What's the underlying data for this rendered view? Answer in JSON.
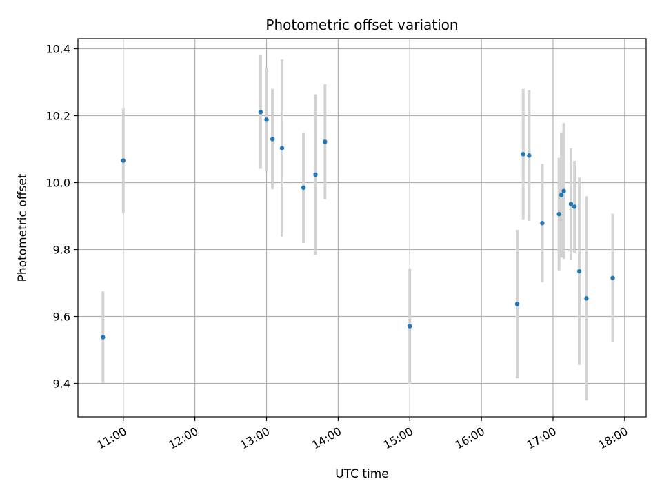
{
  "chart_data": {
    "type": "scatter",
    "title": "Photometric offset variation",
    "xlabel": "UTC time",
    "ylabel": "Photometric offset",
    "xlim": [
      "10:22",
      "18:18"
    ],
    "ylim": [
      9.3,
      10.43
    ],
    "grid": true,
    "x_ticks": [
      "11:00",
      "12:00",
      "13:00",
      "14:00",
      "15:00",
      "16:00",
      "17:00",
      "18:00"
    ],
    "y_ticks": [
      9.4,
      9.6,
      9.8,
      10.0,
      10.2,
      10.4
    ],
    "y_tick_labels": [
      "9.4",
      "9.6",
      "9.8",
      "10.0",
      "10.2",
      "10.4"
    ],
    "colors": {
      "points": "#1f77b4",
      "errorbars": "#d3d3d3",
      "grid": "#b0b0b0"
    },
    "points": [
      {
        "x": "10:43",
        "y": 9.538,
        "yerr": 0.137
      },
      {
        "x": "11:00",
        "y": 10.066,
        "yerr": 0.157
      },
      {
        "x": "12:55",
        "y": 10.211,
        "yerr": 0.17
      },
      {
        "x": "13:00",
        "y": 10.188,
        "yerr": 0.155
      },
      {
        "x": "13:05",
        "y": 10.13,
        "yerr": 0.15
      },
      {
        "x": "13:13",
        "y": 10.103,
        "yerr": 0.265
      },
      {
        "x": "13:31",
        "y": 9.985,
        "yerr": 0.165
      },
      {
        "x": "13:41",
        "y": 10.024,
        "yerr": 0.24
      },
      {
        "x": "13:49",
        "y": 10.122,
        "yerr": 0.172
      },
      {
        "x": "15:00",
        "y": 9.571,
        "yerr": 0.172
      },
      {
        "x": "16:30",
        "y": 9.637,
        "yerr": 0.222
      },
      {
        "x": "16:35",
        "y": 10.085,
        "yerr": 0.195
      },
      {
        "x": "16:40",
        "y": 10.081,
        "yerr": 0.195
      },
      {
        "x": "16:51",
        "y": 9.879,
        "yerr": 0.177
      },
      {
        "x": "17:05",
        "y": 9.906,
        "yerr": 0.168
      },
      {
        "x": "17:07",
        "y": 9.963,
        "yerr": 0.187
      },
      {
        "x": "17:09",
        "y": 9.975,
        "yerr": 0.203
      },
      {
        "x": "17:15",
        "y": 9.936,
        "yerr": 0.166
      },
      {
        "x": "17:18",
        "y": 9.928,
        "yerr": 0.137
      },
      {
        "x": "17:22",
        "y": 9.735,
        "yerr": 0.28
      },
      {
        "x": "17:28",
        "y": 9.654,
        "yerr": 0.305
      },
      {
        "x": "17:50",
        "y": 9.715,
        "yerr": 0.192
      }
    ]
  }
}
